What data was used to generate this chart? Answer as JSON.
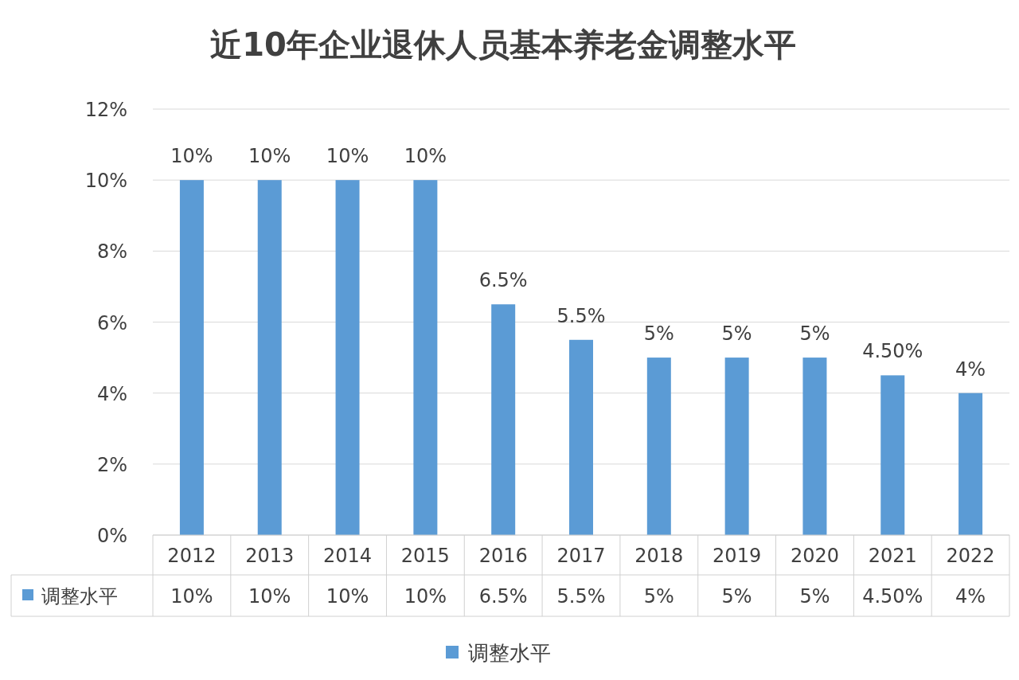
{
  "chart_data": {
    "type": "bar",
    "title": "近10年企业退休人员基本养老金调整水平",
    "categories": [
      "2012",
      "2013",
      "2014",
      "2015",
      "2016",
      "2017",
      "2018",
      "2019",
      "2020",
      "2021",
      "2022"
    ],
    "series": [
      {
        "name": "调整水平",
        "color": "#5b9bd5",
        "values": [
          10,
          10,
          10,
          10,
          6.5,
          5.5,
          5,
          5,
          5,
          4.5,
          4
        ],
        "value_labels": [
          "10%",
          "10%",
          "10%",
          "10%",
          "6.5%",
          "5.5%",
          "5%",
          "5%",
          "5%",
          "4.50%",
          "4%"
        ]
      }
    ],
    "ylim": [
      0,
      12
    ],
    "yticks": [
      {
        "value": 0,
        "label": "0%"
      },
      {
        "value": 2,
        "label": "2%"
      },
      {
        "value": 4,
        "label": "4%"
      },
      {
        "value": 6,
        "label": "6%"
      },
      {
        "value": 8,
        "label": "8%"
      },
      {
        "value": 10,
        "label": "10%"
      },
      {
        "value": 12,
        "label": "12%"
      }
    ],
    "grid": "y",
    "legend": "bottom"
  }
}
